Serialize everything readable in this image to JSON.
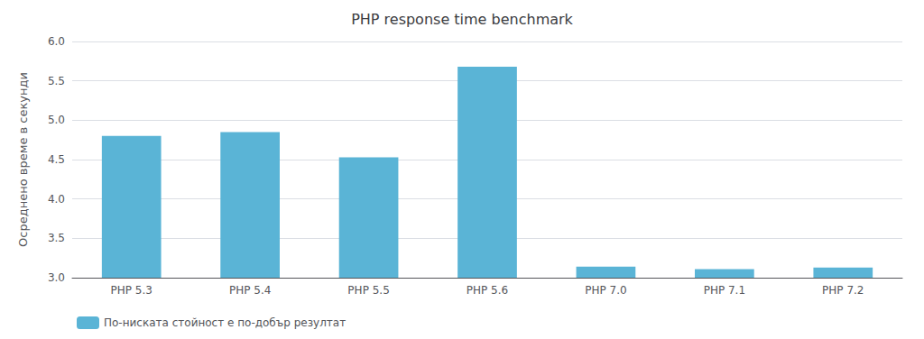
{
  "chart_data": {
    "type": "bar",
    "title": "PHP response time benchmark",
    "categories": [
      "PHP 5.3",
      "PHP 5.4",
      "PHP 5.5",
      "PHP 5.6",
      "PHP 7.0",
      "PHP 7.1",
      "PHP 7.2"
    ],
    "series": [
      {
        "name": "По-ниската стойност е по-добър резултат",
        "color": "#5ab4d6",
        "values": [
          4.8,
          4.85,
          4.53,
          5.68,
          3.14,
          3.11,
          3.13
        ]
      }
    ],
    "ylabel": "Осреднено време в секунди",
    "ylim": [
      3.0,
      6.0
    ],
    "yticks": [
      {
        "value": 3.0,
        "label": "3.0"
      },
      3.5,
      {
        "value": 4.0,
        "label": "4.0"
      },
      4.5,
      {
        "value": 5.0,
        "label": "5.0"
      },
      5.5,
      {
        "value": 6.0,
        "label": "6.0"
      }
    ],
    "grid": true,
    "legend": "lower left"
  }
}
